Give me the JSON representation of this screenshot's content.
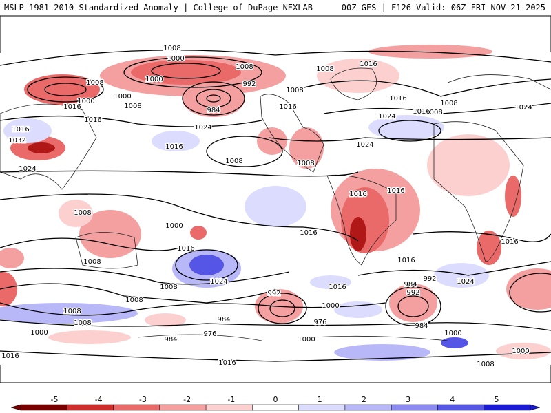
{
  "header": {
    "left": "MSLP 1981-2010 Standardized Anomaly | College of DuPage NEXLAB",
    "right": "00Z GFS | F126 Valid: 06Z FRI NOV 21 2025"
  },
  "map": {
    "projection": "global equirectangular",
    "field": "Mean sea level pressure (hPa) with standardized anomaly shading",
    "contour_labels": [
      "1008",
      "1000",
      "1008",
      "1000",
      "1000",
      "1008",
      "1000",
      "992",
      "1016",
      "1008",
      "984",
      "1016",
      "1024",
      "1016",
      "1032",
      "1024",
      "1016",
      "1008",
      "1008",
      "1008",
      "1008",
      "1016",
      "1024",
      "1008",
      "1016",
      "1016",
      "1008",
      "1024",
      "1016",
      "1024",
      "1016",
      "1008",
      "1000",
      "1016",
      "1016",
      "1016",
      "1016",
      "1016",
      "1008",
      "1024",
      "1008",
      "1016",
      "1024",
      "992",
      "1000",
      "1008",
      "1008",
      "984",
      "976",
      "976",
      "984",
      "1000",
      "992",
      "984",
      "1000",
      "1008",
      "984",
      "992",
      "1000",
      "1000",
      "1008",
      "1016",
      "1016"
    ]
  },
  "colorbar": {
    "ticks": [
      "-5",
      "-4",
      "-3",
      "-2",
      "-1",
      "0",
      "1",
      "2",
      "3",
      "4",
      "5"
    ],
    "colors": [
      "#7a0000",
      "#d02c2c",
      "#ea6a6a",
      "#f5a0a0",
      "#fdd0d0",
      "#ffffff",
      "#dcdcff",
      "#b8b8f8",
      "#8a8af0",
      "#5555e6",
      "#1a1ad8"
    ]
  }
}
